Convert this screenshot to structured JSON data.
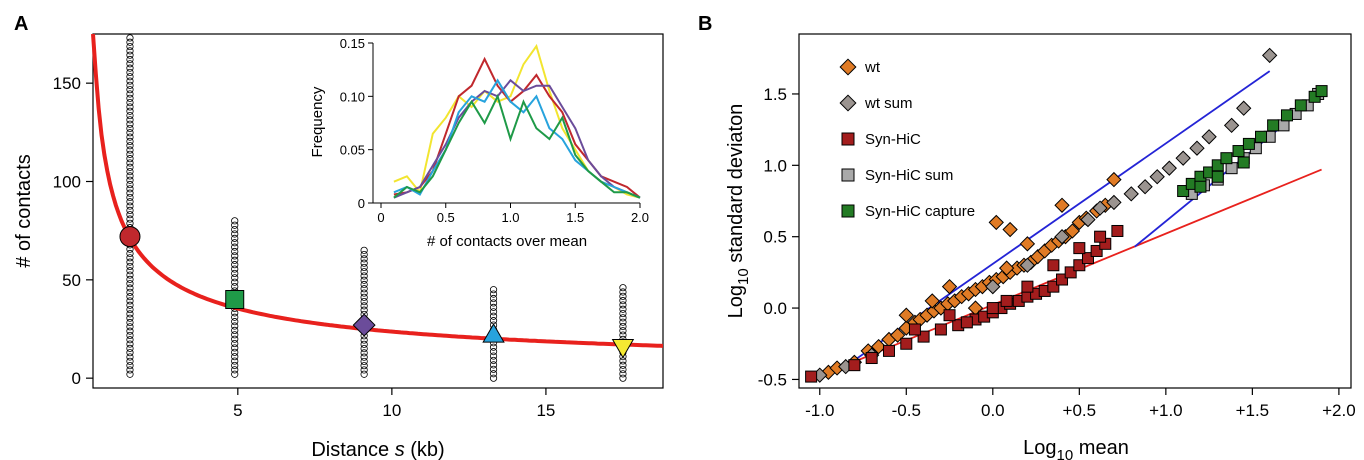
{
  "panels": {
    "a_letter": "A",
    "b_letter": "B"
  },
  "chart_data": [
    {
      "id": "A",
      "type": "scatter",
      "xlabel_prefix": "Distance ",
      "xlabel_var": "s",
      "xlabel_suffix": " (kb)",
      "ylabel": "# of contacts",
      "xlim": [
        0.3,
        18.8
      ],
      "ylim": [
        -5,
        175
      ],
      "xticks": [
        5,
        10,
        15
      ],
      "yticks": [
        0,
        50,
        100,
        150
      ],
      "fit_curve": {
        "type": "power",
        "coefficient": 90,
        "exponent": -0.58,
        "color": "#e8211d"
      },
      "groups": [
        {
          "x": 1.5,
          "mean": 72,
          "min": 2,
          "max": 173,
          "marker": "circle",
          "color": "#c0282d"
        },
        {
          "x": 4.9,
          "mean": 40,
          "min": 2,
          "max": 80,
          "marker": "square",
          "color": "#1f9a48"
        },
        {
          "x": 9.1,
          "mean": 27,
          "min": 2,
          "max": 65,
          "marker": "diamond",
          "color": "#6b4c9a"
        },
        {
          "x": 13.3,
          "mean": 22,
          "min": 0,
          "max": 45,
          "marker": "triangle-up",
          "color": "#27a3dd"
        },
        {
          "x": 17.5,
          "mean": 16,
          "min": 0,
          "max": 46,
          "marker": "triangle-down",
          "color": "#f4e832"
        }
      ],
      "inset": {
        "type": "line",
        "xlabel": "# of contacts over mean",
        "ylabel": "Frequency",
        "xlim": [
          0,
          2.0
        ],
        "ylim": [
          0,
          0.15
        ],
        "xticks": [
          "0",
          "0.5",
          "1.0",
          "1.5",
          "2.0"
        ],
        "yticks": [
          "0",
          "0.05",
          "0.10",
          "0.15"
        ],
        "x": [
          0.1,
          0.2,
          0.3,
          0.4,
          0.5,
          0.6,
          0.7,
          0.8,
          0.9,
          1.0,
          1.1,
          1.2,
          1.3,
          1.4,
          1.5,
          1.6,
          1.7,
          1.8,
          1.9,
          2.0
        ],
        "series": [
          {
            "color": "#f2e530",
            "values": [
              0.02,
              0.025,
              0.01,
              0.065,
              0.08,
              0.1,
              0.09,
              0.105,
              0.095,
              0.1,
              0.13,
              0.147,
              0.105,
              0.07,
              0.05,
              0.03,
              0.02,
              0.015,
              0.008,
              0.005
            ]
          },
          {
            "color": "#c0282d",
            "values": [
              0.008,
              0.01,
              0.015,
              0.03,
              0.065,
              0.1,
              0.11,
              0.135,
              0.11,
              0.095,
              0.105,
              0.12,
              0.1,
              0.085,
              0.055,
              0.04,
              0.025,
              0.02,
              0.015,
              0.005
            ]
          },
          {
            "color": "#6b4c9a",
            "values": [
              0.005,
              0.01,
              0.015,
              0.035,
              0.055,
              0.08,
              0.095,
              0.105,
              0.1,
              0.115,
              0.105,
              0.11,
              0.11,
              0.09,
              0.07,
              0.04,
              0.025,
              0.015,
              0.01,
              0.005
            ]
          },
          {
            "color": "#27a3dd",
            "values": [
              0.01,
              0.015,
              0.008,
              0.03,
              0.05,
              0.085,
              0.1,
              0.095,
              0.115,
              0.095,
              0.085,
              0.1,
              0.07,
              0.06,
              0.04,
              0.03,
              0.02,
              0.015,
              0.01,
              0.005
            ]
          },
          {
            "color": "#1f9a48",
            "values": [
              0.005,
              0.015,
              0.01,
              0.025,
              0.05,
              0.075,
              0.095,
              0.075,
              0.1,
              0.06,
              0.095,
              0.07,
              0.06,
              0.08,
              0.045,
              0.03,
              0.02,
              0.01,
              0.01,
              0.005
            ]
          }
        ]
      }
    },
    {
      "id": "B",
      "type": "scatter",
      "xlabel_base": "Log",
      "xlabel_sub": "10",
      "xlabel_rest": " mean",
      "ylabel_base": "Log",
      "ylabel_sub": "10",
      "ylabel_rest": " standard deviaton",
      "xlim": [
        -1.12,
        2.07
      ],
      "ylim": [
        -0.56,
        1.92
      ],
      "xticks": [
        -1.0,
        -0.5,
        0.0,
        0.5,
        1.0,
        1.5,
        2.0
      ],
      "xtick_labels": [
        "-1.0",
        "-0.5",
        "0.0",
        "+0.5",
        "+1.0",
        "+1.5",
        "+2.0"
      ],
      "yticks": [
        -0.5,
        0.0,
        0.5,
        1.0,
        1.5
      ],
      "ytick_labels": [
        "-0.5",
        "0.0",
        "0.5",
        "1.0",
        "1.5"
      ],
      "lines": [
        {
          "color": "#e8211d",
          "x": [
            -1.05,
            1.9
          ],
          "y": [
            -0.5,
            0.97
          ]
        },
        {
          "color": "#2424d6",
          "x": [
            -0.9,
            1.6
          ],
          "y": [
            -0.45,
            1.66
          ]
        },
        {
          "color": "#2424d6",
          "x": [
            0.82,
            1.9
          ],
          "y": [
            0.43,
            1.5
          ]
        }
      ],
      "series": [
        {
          "name": "wt",
          "marker": "diamond",
          "color": "#e07b25",
          "points": [
            [
              -0.95,
              -0.45
            ],
            [
              -0.9,
              -0.42
            ],
            [
              -0.8,
              -0.38
            ],
            [
              -0.72,
              -0.3
            ],
            [
              -0.66,
              -0.27
            ],
            [
              -0.6,
              -0.22
            ],
            [
              -0.55,
              -0.19
            ],
            [
              -0.5,
              -0.14
            ],
            [
              -0.45,
              -0.1
            ],
            [
              -0.42,
              -0.08
            ],
            [
              -0.38,
              -0.05
            ],
            [
              -0.34,
              -0.02
            ],
            [
              -0.3,
              0.0
            ],
            [
              -0.26,
              0.03
            ],
            [
              -0.22,
              0.05
            ],
            [
              -0.18,
              0.08
            ],
            [
              -0.14,
              0.1
            ],
            [
              -0.1,
              0.13
            ],
            [
              -0.06,
              0.15
            ],
            [
              -0.02,
              0.18
            ],
            [
              0.02,
              0.2
            ],
            [
              0.06,
              0.22
            ],
            [
              0.1,
              0.25
            ],
            [
              0.14,
              0.28
            ],
            [
              0.18,
              0.3
            ],
            [
              0.22,
              0.32
            ],
            [
              0.26,
              0.36
            ],
            [
              0.3,
              0.4
            ],
            [
              0.34,
              0.44
            ],
            [
              0.38,
              0.47
            ],
            [
              0.42,
              0.5
            ],
            [
              0.46,
              0.54
            ],
            [
              0.5,
              0.6
            ],
            [
              0.54,
              0.63
            ],
            [
              0.6,
              0.68
            ],
            [
              0.65,
              0.72
            ],
            [
              0.7,
              0.9
            ],
            [
              0.02,
              0.6
            ],
            [
              0.1,
              0.55
            ],
            [
              0.2,
              0.45
            ],
            [
              -0.25,
              0.15
            ],
            [
              -0.35,
              0.05
            ],
            [
              -0.5,
              -0.05
            ],
            [
              0.4,
              0.72
            ],
            [
              0.08,
              0.28
            ],
            [
              -0.1,
              0.0
            ]
          ]
        },
        {
          "name": "wt sum",
          "marker": "diamond",
          "color": "#9b9490",
          "points": [
            [
              -1.0,
              -0.47
            ],
            [
              -0.85,
              -0.41
            ],
            [
              -0.7,
              -0.33
            ],
            [
              0.0,
              0.15
            ],
            [
              0.2,
              0.3
            ],
            [
              0.4,
              0.5
            ],
            [
              0.55,
              0.62
            ],
            [
              0.62,
              0.7
            ],
            [
              0.7,
              0.74
            ],
            [
              0.8,
              0.8
            ],
            [
              0.88,
              0.85
            ],
            [
              0.95,
              0.92
            ],
            [
              1.02,
              0.98
            ],
            [
              1.1,
              1.05
            ],
            [
              1.18,
              1.12
            ],
            [
              1.25,
              1.2
            ],
            [
              1.38,
              1.28
            ],
            [
              1.45,
              1.4
            ],
            [
              1.6,
              1.77
            ]
          ]
        },
        {
          "name": "Syn-HiC",
          "marker": "square",
          "color": "#a31d1d",
          "points": [
            [
              -1.05,
              -0.48
            ],
            [
              -0.8,
              -0.4
            ],
            [
              -0.7,
              -0.35
            ],
            [
              -0.6,
              -0.3
            ],
            [
              -0.5,
              -0.25
            ],
            [
              -0.4,
              -0.2
            ],
            [
              -0.3,
              -0.15
            ],
            [
              -0.2,
              -0.12
            ],
            [
              -0.1,
              -0.08
            ],
            [
              -0.05,
              -0.06
            ],
            [
              0.0,
              -0.03
            ],
            [
              0.05,
              0.0
            ],
            [
              0.1,
              0.03
            ],
            [
              0.15,
              0.05
            ],
            [
              0.2,
              0.08
            ],
            [
              0.25,
              0.1
            ],
            [
              0.3,
              0.12
            ],
            [
              0.35,
              0.15
            ],
            [
              0.4,
              0.2
            ],
            [
              0.45,
              0.25
            ],
            [
              0.5,
              0.3
            ],
            [
              0.55,
              0.35
            ],
            [
              0.6,
              0.4
            ],
            [
              0.65,
              0.45
            ],
            [
              0.72,
              0.54
            ],
            [
              -0.45,
              -0.15
            ],
            [
              -0.25,
              -0.05
            ],
            [
              0.0,
              0.0
            ],
            [
              0.2,
              0.15
            ],
            [
              0.35,
              0.3
            ],
            [
              0.5,
              0.42
            ],
            [
              0.62,
              0.5
            ],
            [
              -0.15,
              -0.1
            ],
            [
              0.08,
              0.05
            ]
          ]
        },
        {
          "name": "Syn-HiC sum",
          "marker": "square",
          "color": "#a9a9a9",
          "points": [
            [
              1.15,
              0.8
            ],
            [
              1.22,
              0.86
            ],
            [
              1.3,
              0.9
            ],
            [
              1.38,
              0.98
            ],
            [
              1.45,
              1.05
            ],
            [
              1.52,
              1.12
            ],
            [
              1.6,
              1.2
            ],
            [
              1.68,
              1.28
            ],
            [
              1.75,
              1.36
            ],
            [
              1.82,
              1.42
            ],
            [
              1.88,
              1.5
            ]
          ]
        },
        {
          "name": "Syn-HiC capture",
          "marker": "square",
          "color": "#237b24",
          "points": [
            [
              1.1,
              0.82
            ],
            [
              1.15,
              0.87
            ],
            [
              1.2,
              0.92
            ],
            [
              1.25,
              0.95
            ],
            [
              1.3,
              1.0
            ],
            [
              1.35,
              1.05
            ],
            [
              1.42,
              1.1
            ],
            [
              1.48,
              1.15
            ],
            [
              1.55,
              1.2
            ],
            [
              1.62,
              1.28
            ],
            [
              1.7,
              1.35
            ],
            [
              1.78,
              1.42
            ],
            [
              1.86,
              1.48
            ],
            [
              1.9,
              1.52
            ],
            [
              1.2,
              0.85
            ],
            [
              1.3,
              0.92
            ],
            [
              1.45,
              1.02
            ]
          ]
        }
      ]
    }
  ]
}
